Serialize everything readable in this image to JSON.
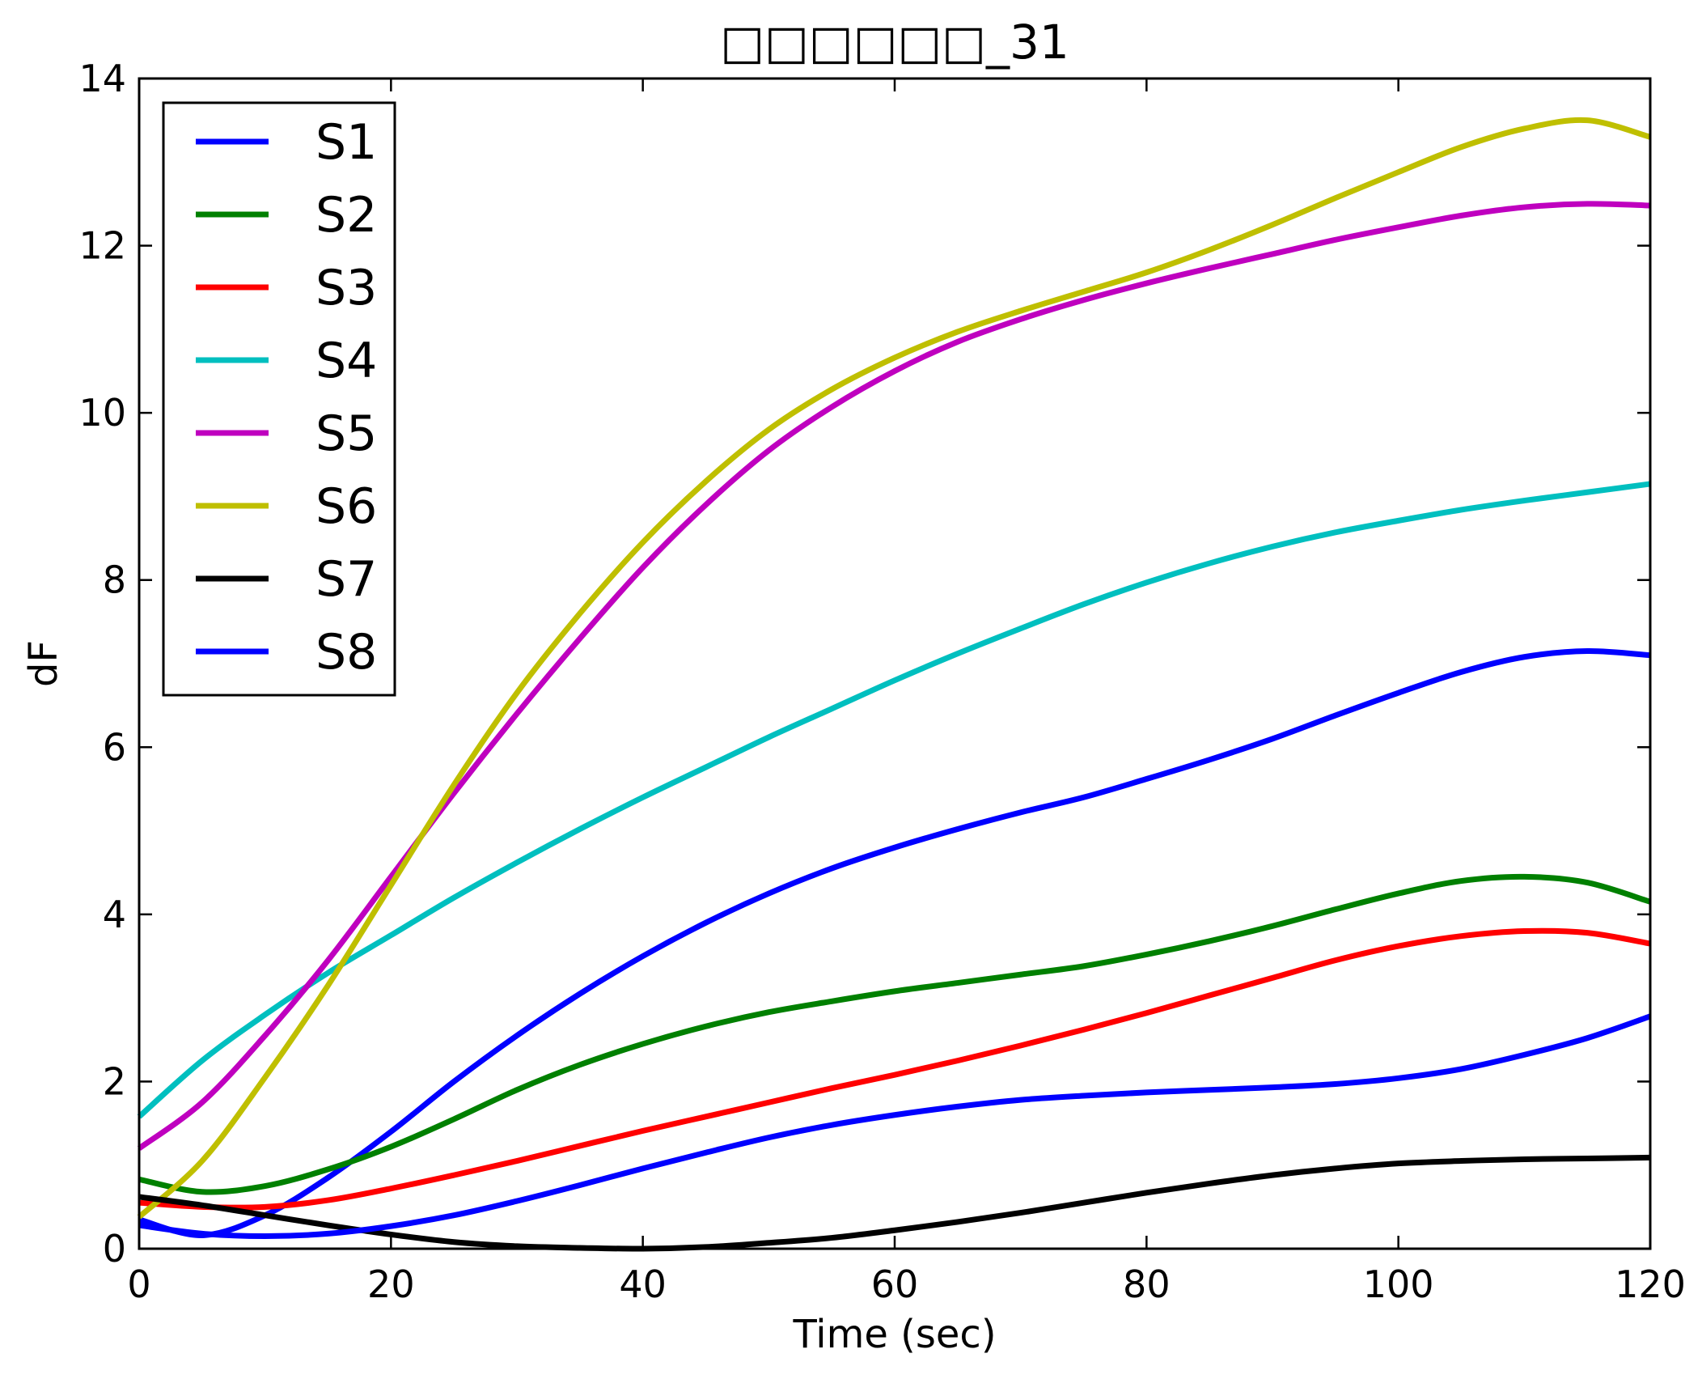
{
  "chart_data": {
    "type": "line",
    "title": "□□□□□□_31",
    "xlabel": "Time (sec)",
    "ylabel": "dF",
    "xlim": [
      0,
      120
    ],
    "ylim": [
      0,
      14
    ],
    "xticks": [
      0,
      20,
      40,
      60,
      80,
      100,
      120
    ],
    "yticks": [
      0,
      2,
      4,
      6,
      8,
      10,
      12,
      14
    ],
    "grid": false,
    "legend_position": "upper-left",
    "x": [
      0,
      5,
      10,
      15,
      20,
      25,
      30,
      35,
      40,
      45,
      50,
      55,
      60,
      65,
      70,
      75,
      80,
      85,
      90,
      95,
      100,
      105,
      110,
      115,
      120
    ],
    "series": [
      {
        "name": "S1",
        "color": "#0000ff",
        "values": [
          0.35,
          0.16,
          0.4,
          0.85,
          1.4,
          2.0,
          2.55,
          3.05,
          3.5,
          3.9,
          4.25,
          4.55,
          4.8,
          5.02,
          5.22,
          5.4,
          5.62,
          5.85,
          6.1,
          6.38,
          6.65,
          6.9,
          7.08,
          7.15,
          7.1
        ]
      },
      {
        "name": "S2",
        "color": "#008000",
        "values": [
          0.83,
          0.68,
          0.75,
          0.95,
          1.22,
          1.55,
          1.9,
          2.2,
          2.45,
          2.66,
          2.83,
          2.96,
          3.08,
          3.18,
          3.28,
          3.38,
          3.52,
          3.68,
          3.86,
          4.06,
          4.25,
          4.4,
          4.45,
          4.38,
          4.15
        ]
      },
      {
        "name": "S3",
        "color": "#ff0000",
        "values": [
          0.55,
          0.5,
          0.5,
          0.58,
          0.72,
          0.88,
          1.05,
          1.23,
          1.41,
          1.58,
          1.75,
          1.92,
          2.08,
          2.25,
          2.43,
          2.62,
          2.82,
          3.03,
          3.24,
          3.45,
          3.62,
          3.74,
          3.8,
          3.78,
          3.65
        ]
      },
      {
        "name": "S4",
        "color": "#00bfbf",
        "values": [
          1.58,
          2.25,
          2.8,
          3.3,
          3.75,
          4.2,
          4.62,
          5.02,
          5.4,
          5.76,
          6.12,
          6.46,
          6.8,
          7.12,
          7.42,
          7.71,
          7.97,
          8.2,
          8.4,
          8.57,
          8.71,
          8.84,
          8.95,
          9.05,
          9.15
        ]
      },
      {
        "name": "S5",
        "color": "#bf00bf",
        "values": [
          1.2,
          1.75,
          2.55,
          3.45,
          4.45,
          5.45,
          6.4,
          7.3,
          8.15,
          8.9,
          9.55,
          10.07,
          10.5,
          10.85,
          11.12,
          11.35,
          11.55,
          11.73,
          11.9,
          12.07,
          12.22,
          12.36,
          12.46,
          12.5,
          12.48
        ]
      },
      {
        "name": "S6",
        "color": "#bfbf00",
        "values": [
          0.38,
          1.05,
          2.05,
          3.15,
          4.35,
          5.55,
          6.65,
          7.6,
          8.45,
          9.18,
          9.8,
          10.28,
          10.66,
          10.97,
          11.22,
          11.45,
          11.68,
          11.95,
          12.25,
          12.57,
          12.88,
          13.18,
          13.4,
          13.5,
          13.3
        ]
      },
      {
        "name": "S7",
        "color": "#000000",
        "values": [
          0.62,
          0.52,
          0.4,
          0.28,
          0.17,
          0.08,
          0.03,
          0.01,
          0.0,
          0.02,
          0.07,
          0.13,
          0.22,
          0.32,
          0.43,
          0.55,
          0.67,
          0.78,
          0.88,
          0.96,
          1.02,
          1.05,
          1.07,
          1.08,
          1.09
        ]
      },
      {
        "name": "S8",
        "color": "#0000ff",
        "values": [
          0.28,
          0.18,
          0.15,
          0.18,
          0.27,
          0.4,
          0.57,
          0.76,
          0.96,
          1.15,
          1.33,
          1.48,
          1.6,
          1.7,
          1.78,
          1.83,
          1.87,
          1.9,
          1.93,
          1.97,
          2.04,
          2.15,
          2.32,
          2.52,
          2.78
        ]
      }
    ]
  }
}
